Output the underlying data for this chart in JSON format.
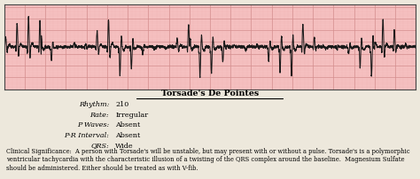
{
  "title": "Torsade's De Pointes",
  "bg_color": "#f5c0c0",
  "ecg_color": "#1a1a1a",
  "grid_major_color": "#d08888",
  "grid_minor_color": "#e8aaaa",
  "rhythm_label": "Rhythm:",
  "rhythm_value": "210",
  "rate_label": "Rate:",
  "rate_value": "Irregular",
  "pwaves_label": "P Waves:",
  "pwaves_value": "Absent",
  "pr_label": "P-R Interval:",
  "pr_value": "Absent",
  "qrs_label": "QRS:",
  "qrs_value": "Wide",
  "clinical_text": "Clinical Significance:  A person with Torsade's will be unstable, but may present with or without a pulse. Torsade's is a polymorphic ventricular tachycardia with the characteristic illusion of a twisting of the QRS complex around the baseline.  Magnesium Sulfate should be administered. Either should be treated as with V-fib.",
  "outer_bg": "#ede8dc"
}
